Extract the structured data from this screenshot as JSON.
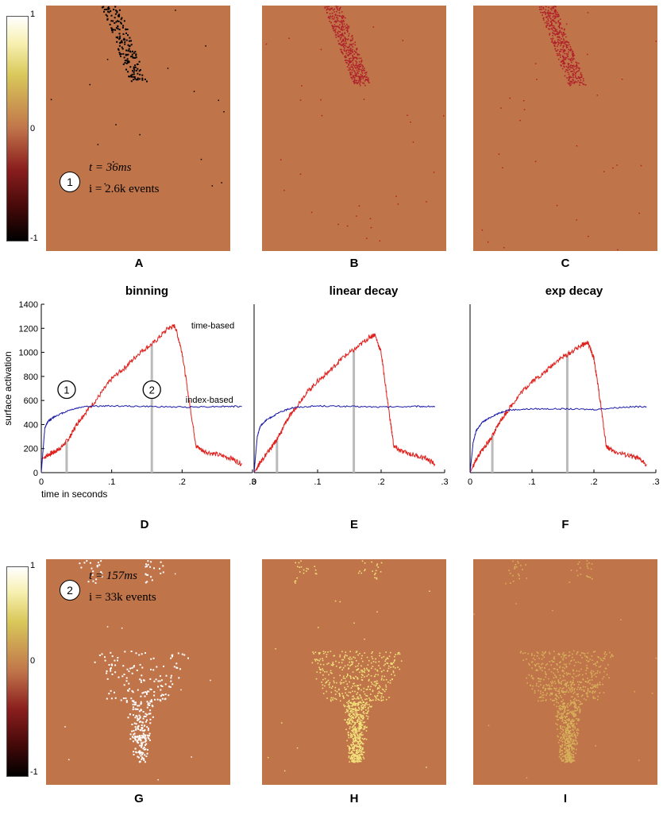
{
  "colorbar": {
    "max_label": "1",
    "mid_label": "0",
    "min_label": "-1"
  },
  "top_panels": {
    "annotation": {
      "marker": "1",
      "t_text": "t = 36ms",
      "i_text": "i = 2.6k events"
    },
    "labels": [
      "A",
      "B",
      "C"
    ]
  },
  "bottom_panels": {
    "annotation": {
      "marker": "2",
      "t_text": "t = 157ms",
      "i_text": "i = 33k events"
    },
    "labels": [
      "G",
      "H",
      "I"
    ]
  },
  "chart_labels": [
    "D",
    "E",
    "F"
  ],
  "chart_data": [
    {
      "type": "line",
      "title": "binning",
      "xlabel": "time in seconds",
      "ylabel": "surface activation",
      "xlim": [
        0,
        0.3
      ],
      "ylim": [
        0,
        1400
      ],
      "xticks": [
        "0",
        ".1",
        ".2",
        ".3"
      ],
      "yticks": [
        "0",
        "200",
        "400",
        "600",
        "800",
        "1000",
        "1200",
        "1400"
      ],
      "markers_x": [
        0.036,
        0.157
      ],
      "marker_labels": [
        "1",
        "2"
      ],
      "series": [
        {
          "name": "time-based",
          "color": "#e0201c",
          "x": [
            0,
            0.01,
            0.02,
            0.03,
            0.04,
            0.05,
            0.06,
            0.08,
            0.1,
            0.12,
            0.14,
            0.16,
            0.18,
            0.19,
            0.2,
            0.21,
            0.22,
            0.23,
            0.25,
            0.27,
            0.285
          ],
          "y": [
            110,
            150,
            175,
            220,
            290,
            400,
            480,
            620,
            780,
            880,
            1000,
            1080,
            1200,
            1220,
            1000,
            600,
            220,
            180,
            150,
            120,
            70
          ]
        },
        {
          "name": "index-based",
          "color": "#1a1aa8",
          "x": [
            0,
            0.005,
            0.01,
            0.02,
            0.04,
            0.06,
            0.1,
            0.15,
            0.2,
            0.25,
            0.285
          ],
          "y": [
            0,
            370,
            430,
            470,
            520,
            550,
            555,
            550,
            545,
            550,
            550
          ]
        }
      ]
    },
    {
      "type": "line",
      "title": "linear decay",
      "xlabel": "",
      "ylabel": "",
      "xlim": [
        0,
        0.3
      ],
      "ylim": [
        0,
        1400
      ],
      "xticks": [
        "0",
        ".1",
        ".2",
        ".3"
      ],
      "yticks": [],
      "markers_x": [
        0.036,
        0.157
      ],
      "series": [
        {
          "name": "time-based",
          "color": "#e0201c",
          "x": [
            0,
            0.01,
            0.02,
            0.03,
            0.04,
            0.05,
            0.06,
            0.08,
            0.1,
            0.12,
            0.14,
            0.16,
            0.18,
            0.19,
            0.2,
            0.21,
            0.22,
            0.23,
            0.25,
            0.27,
            0.285
          ],
          "y": [
            0,
            90,
            160,
            230,
            310,
            420,
            500,
            650,
            760,
            850,
            960,
            1030,
            1120,
            1150,
            1000,
            600,
            220,
            180,
            150,
            120,
            70
          ]
        },
        {
          "name": "index-based",
          "color": "#1a1aa8",
          "x": [
            0,
            0.005,
            0.01,
            0.02,
            0.04,
            0.06,
            0.1,
            0.15,
            0.2,
            0.25,
            0.285
          ],
          "y": [
            0,
            300,
            390,
            440,
            500,
            540,
            555,
            550,
            545,
            550,
            550
          ]
        }
      ]
    },
    {
      "type": "line",
      "title": "exp decay",
      "xlabel": "",
      "ylabel": "",
      "xlim": [
        0,
        0.3
      ],
      "ylim": [
        0,
        1400
      ],
      "xticks": [
        "0",
        ".1",
        ".2",
        ".3"
      ],
      "yticks": [],
      "markers_x": [
        0.036,
        0.157
      ],
      "series": [
        {
          "name": "time-based",
          "color": "#e0201c",
          "x": [
            0,
            0.01,
            0.02,
            0.03,
            0.04,
            0.05,
            0.06,
            0.08,
            0.1,
            0.12,
            0.14,
            0.16,
            0.18,
            0.19,
            0.2,
            0.21,
            0.22,
            0.23,
            0.25,
            0.27,
            0.285
          ],
          "y": [
            0,
            110,
            190,
            260,
            340,
            440,
            510,
            650,
            760,
            830,
            930,
            990,
            1060,
            1080,
            950,
            600,
            220,
            180,
            150,
            120,
            70
          ]
        },
        {
          "name": "index-based",
          "color": "#1a1aa8",
          "x": [
            0,
            0.005,
            0.01,
            0.02,
            0.04,
            0.06,
            0.1,
            0.15,
            0.2,
            0.25,
            0.285
          ],
          "y": [
            0,
            250,
            350,
            420,
            480,
            520,
            530,
            530,
            525,
            545,
            550
          ]
        }
      ]
    }
  ],
  "colors": {
    "background": "#c0744a",
    "event_dark": "#000000",
    "event_red": "#b0202a",
    "event_light": "#ffffff",
    "event_yellow": "#f2e27a",
    "marker_line": "#bbbbbb"
  }
}
